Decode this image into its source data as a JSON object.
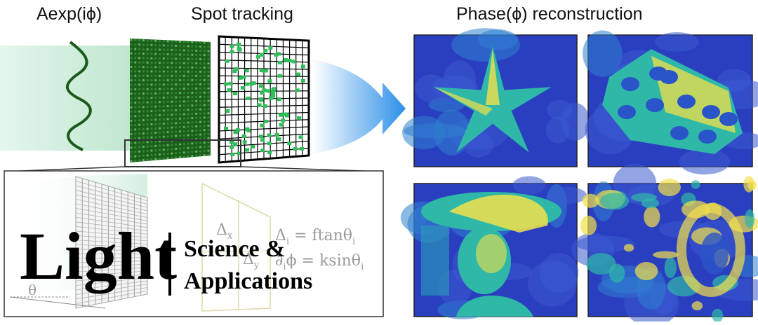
{
  "labels": {
    "field": "Aexp(iϕ)",
    "spot_tracking": "Spot tracking",
    "reconstruction": "Phase(ϕ) reconstruction"
  },
  "equations": {
    "dx_sym": "Δ",
    "dx_sub": "x",
    "dy_sym": "Δ",
    "dy_sub": "y",
    "eq1_left": "Δ",
    "eq1_sub": "i",
    "eq1_right": "= ftanθ",
    "eq1_right_sub": "i",
    "eq2_left": "∂",
    "eq2_sub": "i",
    "eq2_right": "ϕ = ksinθ",
    "eq2_right_sub": "i",
    "theta": "θ"
  },
  "logo": {
    "main": "Light",
    "line1": "Science &",
    "line2": "Applications"
  },
  "colors": {
    "beam": "#cfeee0",
    "wave": "#1a5a1a",
    "lenslet": "#1e6b1e",
    "spot": "#2fbf5a",
    "arrow": "#2b8fe8",
    "phase_low": "#2a3fc0",
    "phase_mid": "#2fb8a8",
    "phase_high": "#f2e04a"
  },
  "icons": [
    "wave-icon",
    "arrow-icon"
  ]
}
